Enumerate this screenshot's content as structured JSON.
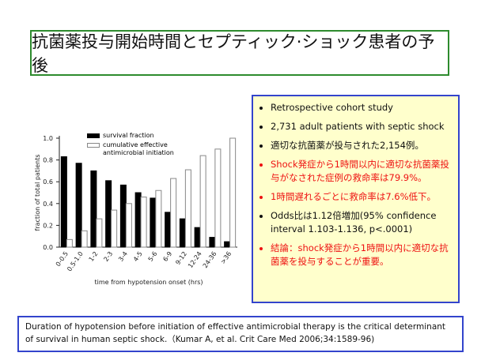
{
  "slide": {
    "title": "抗菌薬投与開始時間とセプティック·ショック患者の予後",
    "bullets": [
      {
        "text": "Retrospective cohort study",
        "color": "#111111"
      },
      {
        "text": "2,731 adult patients with septic shock",
        "color": "#111111"
      },
      {
        "text": "適切な抗菌薬が投与された2,154例。",
        "color": "#111111"
      },
      {
        "text": "Shock発症から1時間以内に適切な抗菌薬投与がなされた症例の救命率は79.9%。",
        "color": "#ee1111"
      },
      {
        "text": "1時間遅れるごとに救命率は7.6%低下。",
        "color": "#ee1111"
      },
      {
        "text": "Odds比は1.12倍増加(95% confidence interval 1.103-1.136, p<.0001)",
        "color": "#111111"
      },
      {
        "text": "結論：shock発症から1時間以内に適切な抗菌薬を投与することが重要。",
        "color": "#ee1111"
      }
    ],
    "caption": "Duration of hypotension before initiation of effective antimicrobial  therapy is the critical determinant of survival in human septic shock.（Kumar A, et al. Crit Care Med 2006;34:1589-96)"
  },
  "chart_data": {
    "type": "bar",
    "y_label": "fraction of total patients",
    "x_label": "time from hypotension onset (hrs)",
    "categories": [
      "0-0.5",
      "0.5-1.0",
      "1-2",
      "2-3",
      "3-4",
      "4-5",
      "5-6",
      "6-9",
      "9-12",
      "12-24",
      "24-36",
      ">36"
    ],
    "series": [
      {
        "name": "survival fraction",
        "color": "#000000",
        "values": [
          0.83,
          0.77,
          0.7,
          0.61,
          0.57,
          0.5,
          0.45,
          0.32,
          0.26,
          0.18,
          0.09,
          0.05
        ]
      },
      {
        "name": "cumulative effective antimicrobial initiation",
        "color": "#ffffff",
        "values": [
          0.07,
          0.15,
          0.26,
          0.34,
          0.4,
          0.46,
          0.52,
          0.63,
          0.71,
          0.84,
          0.9,
          1.0
        ]
      }
    ],
    "ylim": [
      0,
      1
    ],
    "yticks": [
      {
        "value": 0,
        "label": "0.0"
      },
      0.2,
      0.4,
      0.6,
      0.8,
      {
        "value": 1,
        "label": "1.0"
      }
    ]
  }
}
